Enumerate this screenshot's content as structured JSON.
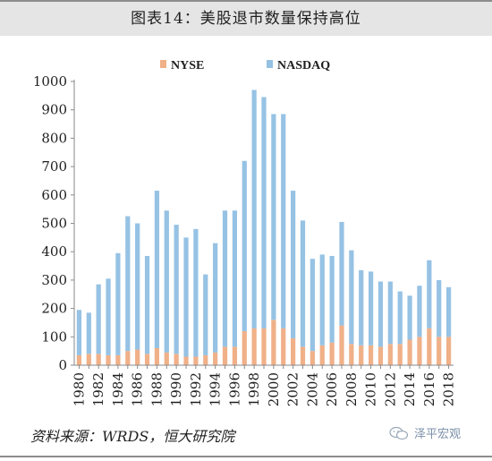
{
  "title": "图表14：美股退市数量保持高位",
  "source": "资料来源：WRDS，恒大研究院",
  "watermark": "泽平宏观",
  "chart_data": {
    "type": "bar",
    "stacked": true,
    "title": "图表14：美股退市数量保持高位",
    "xlabel": "",
    "ylabel": "",
    "ylim": [
      0,
      1000
    ],
    "yticks": [
      0,
      100,
      200,
      300,
      400,
      500,
      600,
      700,
      800,
      900,
      1000
    ],
    "legend_position": "top-center",
    "grid": false,
    "categories": [
      "1980",
      "1981",
      "1982",
      "1983",
      "1984",
      "1985",
      "1986",
      "1987",
      "1988",
      "1989",
      "1990",
      "1991",
      "1992",
      "1993",
      "1994",
      "1995",
      "1996",
      "1997",
      "1998",
      "1999",
      "2000",
      "2001",
      "2002",
      "2003",
      "2004",
      "2005",
      "2006",
      "2007",
      "2008",
      "2009",
      "2010",
      "2011",
      "2012",
      "2013",
      "2014",
      "2015",
      "2016",
      "2017",
      "2018"
    ],
    "xtick_labels": [
      "1980",
      "1982",
      "1984",
      "1986",
      "1988",
      "1990",
      "1992",
      "1994",
      "1996",
      "1998",
      "2000",
      "2002",
      "2004",
      "2006",
      "2008",
      "2010",
      "2012",
      "2014",
      "2016",
      "2018"
    ],
    "series": [
      {
        "name": "NYSE",
        "color": "#f0b088",
        "values": [
          35,
          40,
          40,
          35,
          35,
          50,
          55,
          40,
          60,
          45,
          40,
          30,
          30,
          35,
          45,
          65,
          65,
          120,
          130,
          130,
          160,
          130,
          95,
          65,
          50,
          70,
          80,
          140,
          75,
          70,
          70,
          65,
          75,
          75,
          90,
          100,
          130,
          100,
          100
        ]
      },
      {
        "name": "NASDAQ",
        "color": "#96c2e4",
        "values": [
          160,
          145,
          245,
          270,
          360,
          475,
          445,
          345,
          555,
          500,
          455,
          420,
          450,
          285,
          385,
          480,
          480,
          600,
          840,
          815,
          725,
          755,
          520,
          445,
          325,
          320,
          305,
          365,
          330,
          265,
          260,
          230,
          220,
          185,
          155,
          180,
          240,
          200,
          175
        ]
      }
    ]
  }
}
